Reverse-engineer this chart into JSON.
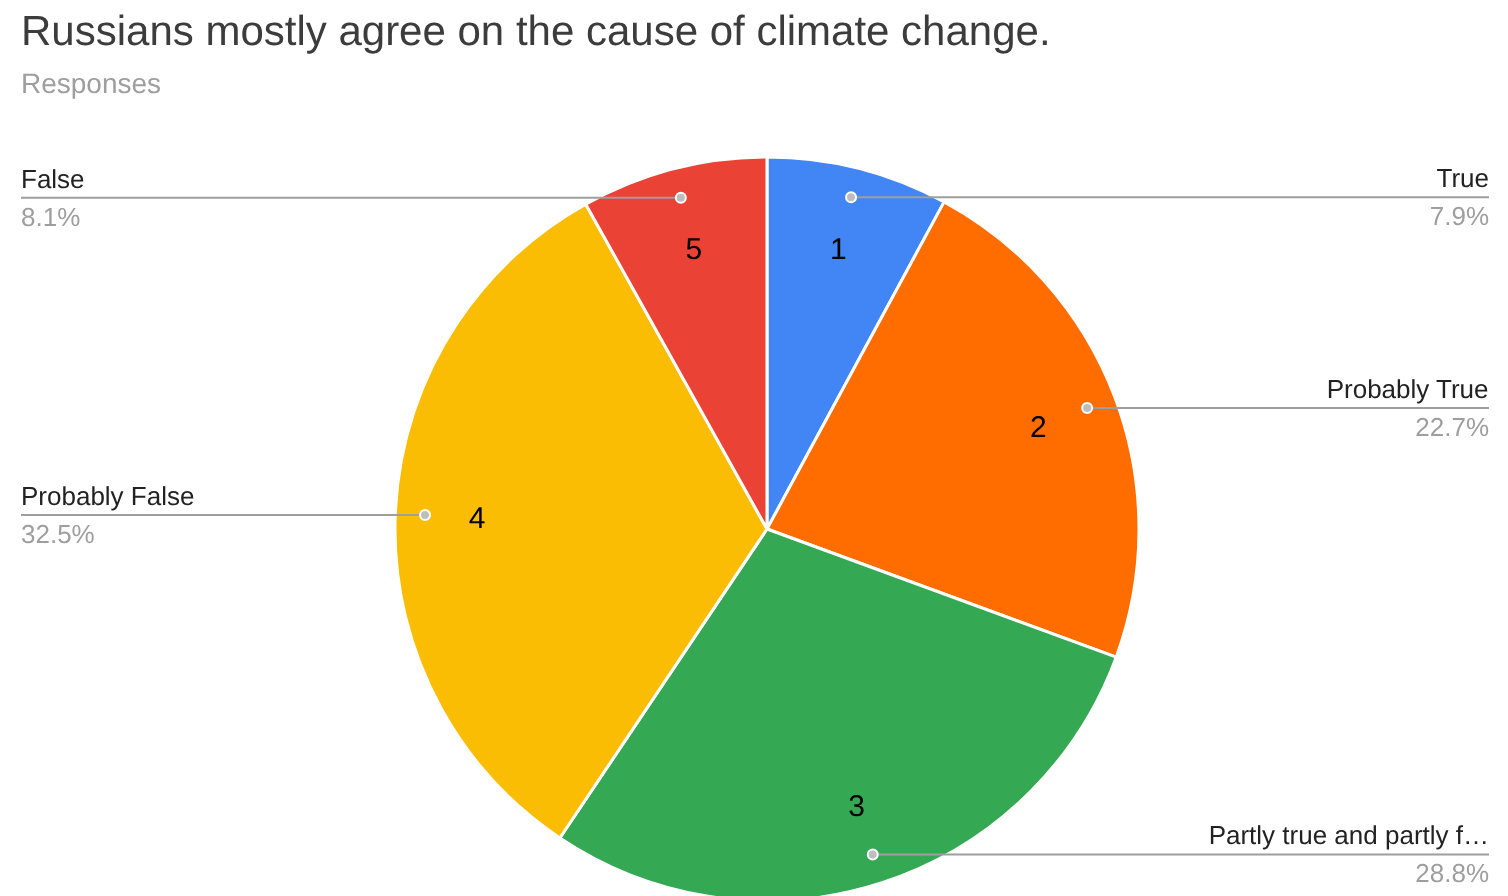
{
  "chart_data": {
    "type": "pie",
    "title": "Russians mostly agree on the cause of climate change.",
    "subtitle": "Responses",
    "categories": [
      "True",
      "Probably True",
      "Partly true and partly f…",
      "Probably False",
      "False"
    ],
    "values": [
      7.9,
      22.7,
      28.8,
      32.5,
      8.1
    ],
    "colors": [
      "#4285f4",
      "#ff6d01",
      "#34a853",
      "#fbbc04",
      "#ea4335"
    ],
    "value_labels": [
      "7.9%",
      "22.7%",
      "28.8%",
      "32.5%",
      "8.1%"
    ],
    "annotations": [
      "1",
      "2",
      "3",
      "4",
      "5"
    ]
  }
}
